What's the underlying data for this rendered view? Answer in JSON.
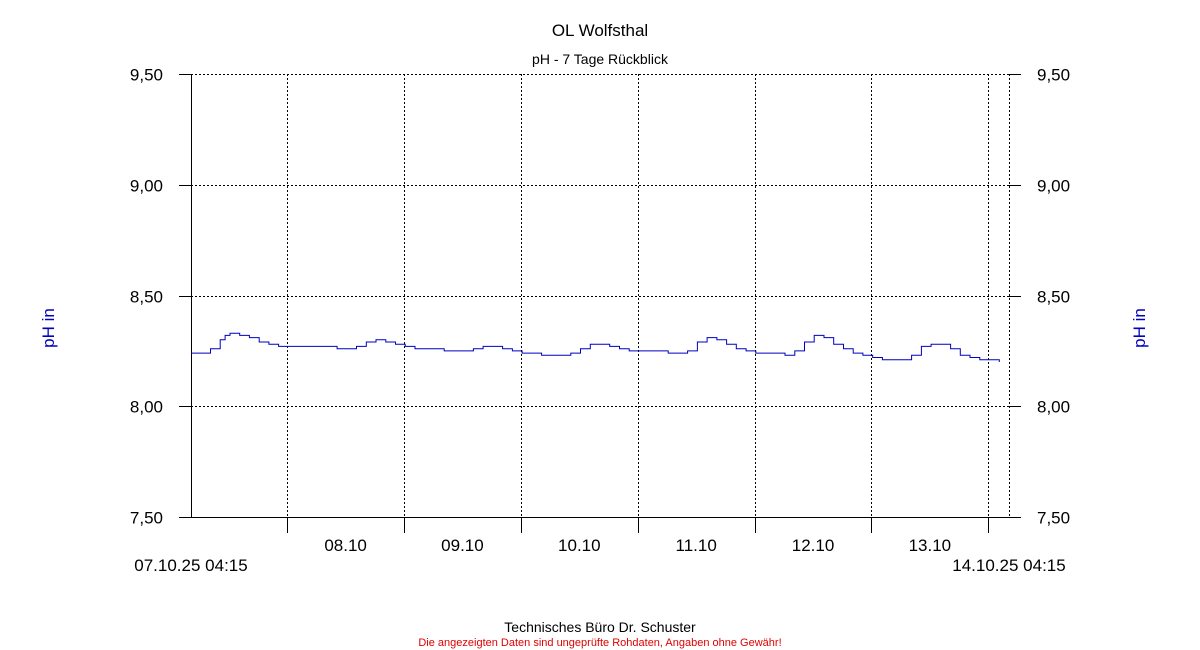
{
  "chart_data": {
    "type": "line",
    "title": "OL Wolfsthal",
    "subtitle": "pH - 7 Tage Rückblick",
    "ylabel_left": "pH in",
    "ylabel_right": "pH in",
    "ylim": [
      7.5,
      9.5
    ],
    "yticks": [
      "7,50",
      "8,00",
      "8,50",
      "9,00",
      "9,50"
    ],
    "ytick_values": [
      7.5,
      8.0,
      8.5,
      9.0,
      9.5
    ],
    "x_start_label": "07.10.25 04:15",
    "x_end_label": "14.10.25 04:15",
    "x_range_hours": [
      0,
      168
    ],
    "day_ticks": [
      {
        "label": "08.10",
        "hour": 19.75
      },
      {
        "label": "09.10",
        "hour": 43.75
      },
      {
        "label": "10.10",
        "hour": 67.75
      },
      {
        "label": "11.10",
        "hour": 91.75
      },
      {
        "label": "12.10",
        "hour": 115.75
      },
      {
        "label": "13.10",
        "hour": 139.75
      },
      {
        "label": "14.10",
        "hour": 163.75
      }
    ],
    "grid": true,
    "series": [
      {
        "color": "#0000c0",
        "x": [
          0,
          2,
          4,
          6,
          7,
          8,
          10,
          12,
          14,
          16,
          18,
          20,
          22,
          24,
          26,
          28,
          30,
          32,
          34,
          36,
          38,
          40,
          42,
          44,
          46,
          48,
          50,
          52,
          54,
          56,
          58,
          60,
          62,
          64,
          66,
          68,
          70,
          72,
          74,
          76,
          78,
          80,
          82,
          84,
          86,
          88,
          90,
          92,
          94,
          96,
          98,
          100,
          102,
          104,
          106,
          108,
          110,
          112,
          114,
          116,
          118,
          120,
          122,
          124,
          126,
          128,
          130,
          132,
          134,
          136,
          138,
          140,
          142,
          144,
          146,
          148,
          150,
          152,
          154,
          156,
          158,
          160,
          162,
          164,
          166
        ],
        "y": [
          8.24,
          8.24,
          8.26,
          8.3,
          8.32,
          8.33,
          8.32,
          8.31,
          8.29,
          8.28,
          8.27,
          8.27,
          8.27,
          8.27,
          8.27,
          8.27,
          8.26,
          8.26,
          8.27,
          8.29,
          8.3,
          8.29,
          8.28,
          8.27,
          8.26,
          8.26,
          8.26,
          8.25,
          8.25,
          8.25,
          8.26,
          8.27,
          8.27,
          8.26,
          8.25,
          8.24,
          8.24,
          8.23,
          8.23,
          8.23,
          8.24,
          8.26,
          8.28,
          8.28,
          8.27,
          8.26,
          8.25,
          8.25,
          8.25,
          8.25,
          8.24,
          8.24,
          8.25,
          8.29,
          8.31,
          8.3,
          8.28,
          8.26,
          8.25,
          8.24,
          8.24,
          8.24,
          8.23,
          8.25,
          8.29,
          8.32,
          8.31,
          8.28,
          8.26,
          8.24,
          8.23,
          8.22,
          8.21,
          8.21,
          8.21,
          8.23,
          8.27,
          8.28,
          8.28,
          8.26,
          8.23,
          8.22,
          8.21,
          8.21,
          8.2
        ]
      }
    ]
  },
  "footer": {
    "credit": "Technisches Büro Dr. Schuster",
    "disclaimer": "Die angezeigten Daten sind ungeprüfte Rohdaten, Angaben ohne Gewähr!"
  }
}
